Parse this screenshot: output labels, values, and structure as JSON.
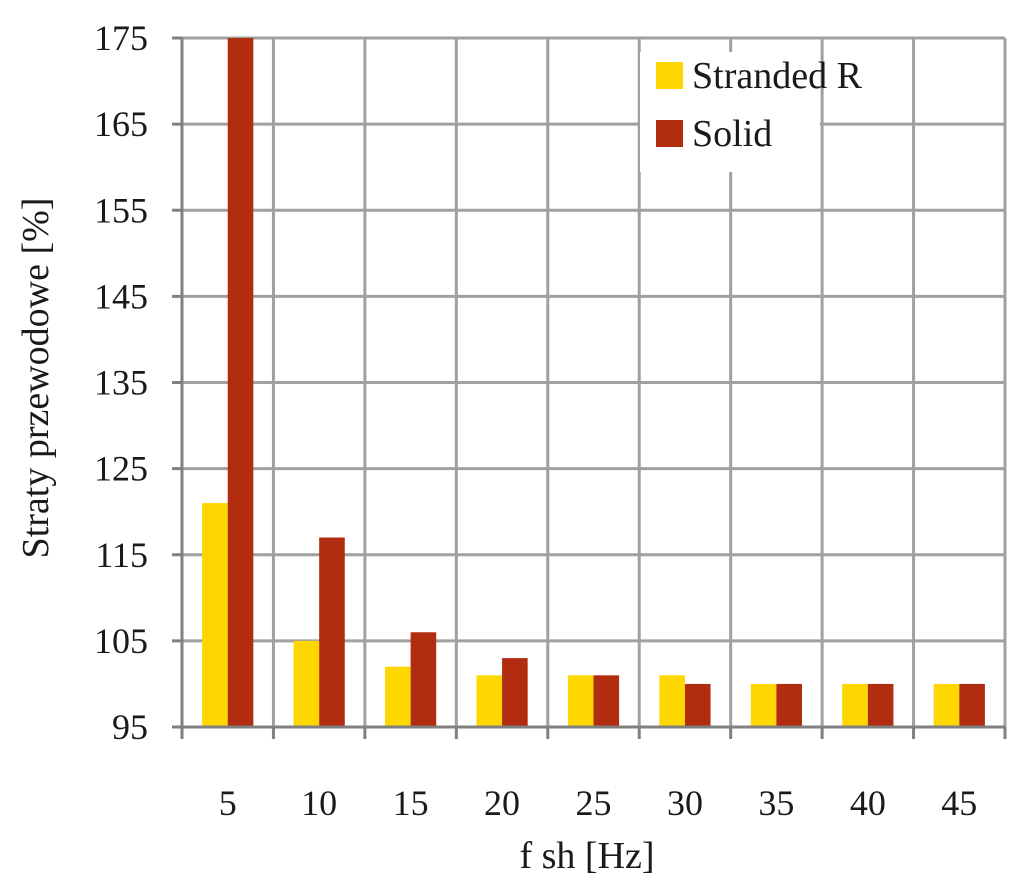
{
  "chart_data": {
    "type": "bar",
    "title": "",
    "xlabel": "f sh [Hz]",
    "ylabel": "Straty przewodowe [%]",
    "categories": [
      "5",
      "10",
      "15",
      "20",
      "25",
      "30",
      "35",
      "40",
      "45"
    ],
    "ylim": [
      95,
      175
    ],
    "yticks": [
      "95",
      "105",
      "115",
      "125",
      "135",
      "145",
      "155",
      "165",
      "175"
    ],
    "grid": true,
    "legend_position": "top-right",
    "series": [
      {
        "name": "Stranded R",
        "color": "#ffd700",
        "values": [
          121,
          105,
          102,
          101,
          101,
          101,
          100,
          100,
          100
        ]
      },
      {
        "name": "Solid",
        "color": "#b22c0f",
        "values": [
          175,
          117,
          106,
          103,
          101,
          100,
          100,
          100,
          100
        ]
      }
    ]
  }
}
